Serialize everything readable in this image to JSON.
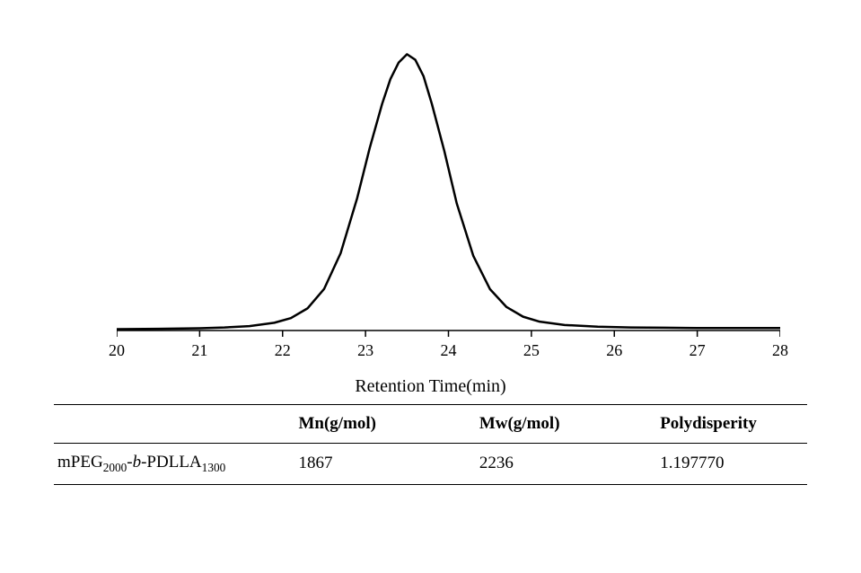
{
  "chart": {
    "type": "line",
    "xlabel": "Retention Time(min)",
    "xlim": [
      20,
      28
    ],
    "xticks": [
      20,
      21,
      22,
      23,
      24,
      25,
      26,
      27,
      28
    ],
    "ylim": [
      0,
      1.05
    ],
    "line_color": "#000000",
    "line_width": 2.5,
    "background_color": "#ffffff",
    "axis_color": "#000000",
    "tick_fontsize": 18,
    "label_fontsize": 20,
    "series": {
      "x": [
        20.0,
        20.5,
        21.0,
        21.3,
        21.6,
        21.9,
        22.1,
        22.3,
        22.5,
        22.7,
        22.9,
        23.05,
        23.2,
        23.3,
        23.4,
        23.5,
        23.6,
        23.7,
        23.8,
        23.95,
        24.1,
        24.3,
        24.5,
        24.7,
        24.9,
        25.1,
        25.4,
        25.8,
        26.2,
        26.6,
        27.0,
        27.5,
        28.0
      ],
      "y": [
        0.005,
        0.006,
        0.008,
        0.011,
        0.016,
        0.028,
        0.045,
        0.08,
        0.15,
        0.28,
        0.48,
        0.66,
        0.82,
        0.91,
        0.97,
        1.0,
        0.98,
        0.92,
        0.82,
        0.65,
        0.46,
        0.27,
        0.15,
        0.085,
        0.05,
        0.032,
        0.02,
        0.014,
        0.011,
        0.01,
        0.009,
        0.009,
        0.009
      ]
    }
  },
  "table": {
    "columns": [
      {
        "key": "name",
        "label": ""
      },
      {
        "key": "mn",
        "label": "Mn(g/mol)"
      },
      {
        "key": "mw",
        "label": "Mw(g/mol)"
      },
      {
        "key": "poly",
        "label": "Polydisperity"
      }
    ],
    "rows": [
      {
        "name_prefix": "mPEG",
        "name_sub1": "2000",
        "name_mid": "-",
        "name_italic": "b",
        "name_mid2": "-PDLLA",
        "name_sub2": "1300",
        "mn": "1867",
        "mw": "2236",
        "poly": "1.197770"
      }
    ],
    "header_bold": true,
    "border_color": "#000000",
    "fontsize": 19
  }
}
